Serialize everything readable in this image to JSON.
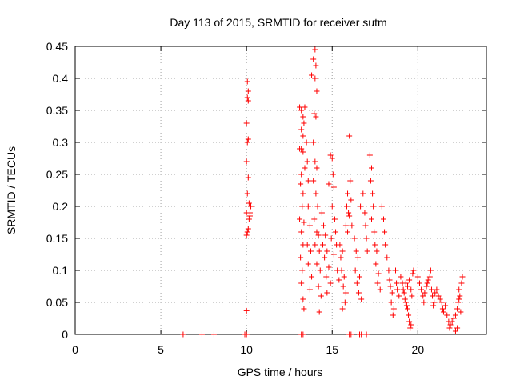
{
  "chart_data": {
    "type": "scatter",
    "title": "Day 113 of 2015, SRMTID for receiver sutm",
    "xlabel": "GPS time / hours",
    "ylabel": "SRMTID / TECUs",
    "xlim": [
      0,
      24
    ],
    "ylim": [
      0,
      0.45
    ],
    "xticks": [
      0,
      5,
      10,
      15,
      20
    ],
    "xtick_labels": [
      "0",
      "5",
      "10",
      "15",
      "20"
    ],
    "yticks": [
      0,
      0.05,
      0.1,
      0.15,
      0.2,
      0.25,
      0.3,
      0.35,
      0.4,
      0.45
    ],
    "ytick_labels": [
      "0",
      "0.05",
      "0.1",
      "0.15",
      "0.2",
      "0.25",
      "0.3",
      "0.35",
      "0.4",
      "0.45"
    ],
    "grid": true,
    "marker": "+",
    "color": "#ff0000",
    "series": [
      {
        "name": "SRMTID",
        "points": [
          [
            6.3,
            0
          ],
          [
            7.4,
            0
          ],
          [
            8.1,
            0
          ],
          [
            9.9,
            0
          ],
          [
            10.0,
            0
          ],
          [
            13.2,
            0
          ],
          [
            13.3,
            0
          ],
          [
            16.0,
            0
          ],
          [
            16.1,
            0
          ],
          [
            16.6,
            0
          ],
          [
            16.7,
            0
          ],
          [
            17.0,
            0
          ],
          [
            10.0,
            0.037
          ],
          [
            10.0,
            0.155
          ],
          [
            10.05,
            0.16
          ],
          [
            10.1,
            0.165
          ],
          [
            10.0,
            0.19
          ],
          [
            10.05,
            0.22
          ],
          [
            10.1,
            0.245
          ],
          [
            10.0,
            0.27
          ],
          [
            10.05,
            0.3
          ],
          [
            10.1,
            0.305
          ],
          [
            10.0,
            0.33
          ],
          [
            10.1,
            0.365
          ],
          [
            10.05,
            0.37
          ],
          [
            10.1,
            0.38
          ],
          [
            10.05,
            0.395
          ],
          [
            10.15,
            0.18
          ],
          [
            10.2,
            0.185
          ],
          [
            10.2,
            0.19
          ],
          [
            10.25,
            0.2
          ],
          [
            10.15,
            0.205
          ],
          [
            13.1,
            0.355
          ],
          [
            13.2,
            0.35
          ],
          [
            13.3,
            0.34
          ],
          [
            13.4,
            0.355
          ],
          [
            13.2,
            0.32
          ],
          [
            13.3,
            0.31
          ],
          [
            13.35,
            0.33
          ],
          [
            13.1,
            0.29
          ],
          [
            13.2,
            0.29
          ],
          [
            13.3,
            0.285
          ],
          [
            13.4,
            0.26
          ],
          [
            13.2,
            0.25
          ],
          [
            13.15,
            0.235
          ],
          [
            13.3,
            0.22
          ],
          [
            13.25,
            0.2
          ],
          [
            13.1,
            0.18
          ],
          [
            13.35,
            0.175
          ],
          [
            13.2,
            0.16
          ],
          [
            13.3,
            0.14
          ],
          [
            13.15,
            0.12
          ],
          [
            13.25,
            0.1
          ],
          [
            13.2,
            0.08
          ],
          [
            13.3,
            0.055
          ],
          [
            13.35,
            0.04
          ],
          [
            13.5,
            0.3
          ],
          [
            13.55,
            0.27
          ],
          [
            13.6,
            0.24
          ],
          [
            13.6,
            0.2
          ],
          [
            13.7,
            0.17
          ],
          [
            13.55,
            0.14
          ],
          [
            13.75,
            0.13
          ],
          [
            13.6,
            0.11
          ],
          [
            13.8,
            0.09
          ],
          [
            13.7,
            0.07
          ],
          [
            13.8,
            0.405
          ],
          [
            13.9,
            0.43
          ],
          [
            14.0,
            0.445
          ],
          [
            14.05,
            0.42
          ],
          [
            14.0,
            0.4
          ],
          [
            14.1,
            0.38
          ],
          [
            13.95,
            0.345
          ],
          [
            14.05,
            0.34
          ],
          [
            13.9,
            0.3
          ],
          [
            14.0,
            0.27
          ],
          [
            14.1,
            0.26
          ],
          [
            13.9,
            0.24
          ],
          [
            14.05,
            0.22
          ],
          [
            14.15,
            0.2
          ],
          [
            13.95,
            0.18
          ],
          [
            14.1,
            0.16
          ],
          [
            14.2,
            0.155
          ],
          [
            14.0,
            0.14
          ],
          [
            14.25,
            0.13
          ],
          [
            14.1,
            0.11
          ],
          [
            14.3,
            0.1
          ],
          [
            14.2,
            0.075
          ],
          [
            14.35,
            0.06
          ],
          [
            14.25,
            0.035
          ],
          [
            14.4,
            0.19
          ],
          [
            14.5,
            0.17
          ],
          [
            14.6,
            0.155
          ],
          [
            14.45,
            0.14
          ],
          [
            14.7,
            0.13
          ],
          [
            14.55,
            0.12
          ],
          [
            14.8,
            0.105
          ],
          [
            14.65,
            0.09
          ],
          [
            14.9,
            0.08
          ],
          [
            14.7,
            0.065
          ],
          [
            14.8,
            0.235
          ],
          [
            14.9,
            0.28
          ],
          [
            15.0,
            0.275
          ],
          [
            15.05,
            0.25
          ],
          [
            15.1,
            0.23
          ],
          [
            15.0,
            0.2
          ],
          [
            15.15,
            0.18
          ],
          [
            15.2,
            0.16
          ],
          [
            14.95,
            0.15
          ],
          [
            15.25,
            0.14
          ],
          [
            15.1,
            0.125
          ],
          [
            15.3,
            0.1
          ],
          [
            15.4,
            0.085
          ],
          [
            15.5,
            0.12
          ],
          [
            15.45,
            0.14
          ],
          [
            15.6,
            0.13
          ],
          [
            15.55,
            0.1
          ],
          [
            15.7,
            0.09
          ],
          [
            15.65,
            0.075
          ],
          [
            15.8,
            0.065
          ],
          [
            15.75,
            0.05
          ],
          [
            15.6,
            0.04
          ],
          [
            15.8,
            0.17
          ],
          [
            15.85,
            0.2
          ],
          [
            15.9,
            0.22
          ],
          [
            15.95,
            0.19
          ],
          [
            16.0,
            0.185
          ],
          [
            15.9,
            0.16
          ],
          [
            16.0,
            0.31
          ],
          [
            16.05,
            0.24
          ],
          [
            16.1,
            0.21
          ],
          [
            16.15,
            0.17
          ],
          [
            16.3,
            0.15
          ],
          [
            16.4,
            0.13
          ],
          [
            16.5,
            0.12
          ],
          [
            16.35,
            0.1
          ],
          [
            16.6,
            0.09
          ],
          [
            16.45,
            0.08
          ],
          [
            16.55,
            0.065
          ],
          [
            16.7,
            0.055
          ],
          [
            16.65,
            0.2
          ],
          [
            16.8,
            0.22
          ],
          [
            16.9,
            0.19
          ],
          [
            16.95,
            0.17
          ],
          [
            17.0,
            0.15
          ],
          [
            17.05,
            0.13
          ],
          [
            17.2,
            0.28
          ],
          [
            17.3,
            0.26
          ],
          [
            17.25,
            0.24
          ],
          [
            17.35,
            0.22
          ],
          [
            17.4,
            0.2
          ],
          [
            17.3,
            0.18
          ],
          [
            17.45,
            0.16
          ],
          [
            17.5,
            0.14
          ],
          [
            17.6,
            0.13
          ],
          [
            17.55,
            0.11
          ],
          [
            17.7,
            0.095
          ],
          [
            17.65,
            0.08
          ],
          [
            17.8,
            0.07
          ],
          [
            17.9,
            0.2
          ],
          [
            18.0,
            0.18
          ],
          [
            18.05,
            0.16
          ],
          [
            18.1,
            0.14
          ],
          [
            18.2,
            0.12
          ],
          [
            18.3,
            0.1
          ],
          [
            18.35,
            0.085
          ],
          [
            18.4,
            0.075
          ],
          [
            18.5,
            0.065
          ],
          [
            18.45,
            0.05
          ],
          [
            18.6,
            0.04
          ],
          [
            18.55,
            0.03
          ],
          [
            18.7,
            0.1
          ],
          [
            18.75,
            0.08
          ],
          [
            18.8,
            0.07
          ],
          [
            18.9,
            0.06
          ],
          [
            19.0,
            0.09
          ],
          [
            19.1,
            0.08
          ],
          [
            19.15,
            0.07
          ],
          [
            19.2,
            0.065
          ],
          [
            19.25,
            0.055
          ],
          [
            19.3,
            0.05
          ],
          [
            19.35,
            0.045
          ],
          [
            19.4,
            0.04
          ],
          [
            19.45,
            0.03
          ],
          [
            19.5,
            0.02
          ],
          [
            19.55,
            0.01
          ],
          [
            19.6,
            0.015
          ],
          [
            19.3,
            0.08
          ],
          [
            19.4,
            0.075
          ],
          [
            19.5,
            0.085
          ],
          [
            19.6,
            0.07
          ],
          [
            19.65,
            0.06
          ],
          [
            19.7,
            0.095
          ],
          [
            19.75,
            0.1
          ],
          [
            20.0,
            0.09
          ],
          [
            20.1,
            0.08
          ],
          [
            20.2,
            0.07
          ],
          [
            20.3,
            0.06
          ],
          [
            20.35,
            0.05
          ],
          [
            20.4,
            0.065
          ],
          [
            20.5,
            0.075
          ],
          [
            20.55,
            0.08
          ],
          [
            20.6,
            0.085
          ],
          [
            20.7,
            0.09
          ],
          [
            20.75,
            0.1
          ],
          [
            20.8,
            0.07
          ],
          [
            20.85,
            0.06
          ],
          [
            20.9,
            0.045
          ],
          [
            20.95,
            0.05
          ],
          [
            21.0,
            0.065
          ],
          [
            21.1,
            0.07
          ],
          [
            21.2,
            0.06
          ],
          [
            21.3,
            0.055
          ],
          [
            21.4,
            0.05
          ],
          [
            21.45,
            0.04
          ],
          [
            21.5,
            0.035
          ],
          [
            21.6,
            0.045
          ],
          [
            21.7,
            0.03
          ],
          [
            21.8,
            0.02
          ],
          [
            21.85,
            0.01
          ],
          [
            21.9,
            0.015
          ],
          [
            22.0,
            0.02
          ],
          [
            22.1,
            0.025
          ],
          [
            22.2,
            0.03
          ],
          [
            22.3,
            0.04
          ],
          [
            22.35,
            0.05
          ],
          [
            22.4,
            0.055
          ],
          [
            22.45,
            0.06
          ],
          [
            22.5,
            0.035
          ],
          [
            22.55,
            0.08
          ],
          [
            22.6,
            0.09
          ],
          [
            22.4,
            0.07
          ],
          [
            22.3,
            0.01
          ],
          [
            22.2,
            0.005
          ]
        ]
      }
    ]
  }
}
